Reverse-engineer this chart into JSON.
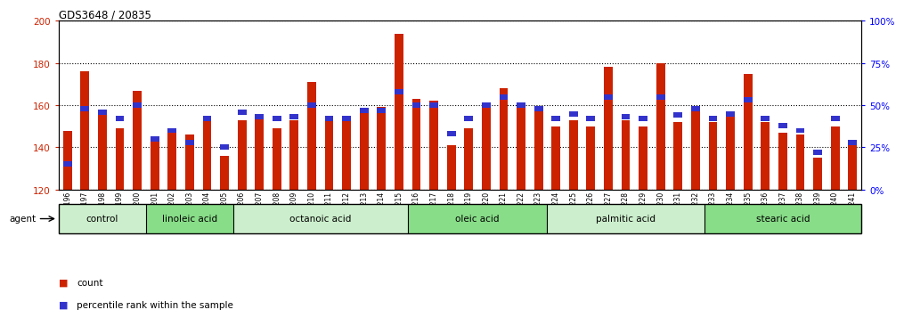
{
  "title": "GDS3648 / 20835",
  "samples": [
    "GSM525196",
    "GSM525197",
    "GSM525198",
    "GSM525199",
    "GSM525200",
    "GSM525201",
    "GSM525202",
    "GSM525203",
    "GSM525204",
    "GSM525205",
    "GSM525206",
    "GSM525207",
    "GSM525208",
    "GSM525209",
    "GSM525210",
    "GSM525211",
    "GSM525212",
    "GSM525213",
    "GSM525214",
    "GSM525215",
    "GSM525216",
    "GSM525217",
    "GSM525218",
    "GSM525219",
    "GSM525220",
    "GSM525221",
    "GSM525222",
    "GSM525223",
    "GSM525224",
    "GSM525225",
    "GSM525226",
    "GSM525227",
    "GSM525228",
    "GSM525229",
    "GSM525230",
    "GSM525231",
    "GSM525232",
    "GSM525233",
    "GSM525234",
    "GSM525235",
    "GSM525236",
    "GSM525237",
    "GSM525238",
    "GSM525239",
    "GSM525240",
    "GSM525241"
  ],
  "counts": [
    148,
    176,
    158,
    149,
    167,
    145,
    148,
    146,
    155,
    136,
    153,
    156,
    149,
    153,
    171,
    153,
    153,
    158,
    159,
    194,
    163,
    162,
    141,
    149,
    161,
    168,
    160,
    157,
    150,
    153,
    150,
    178,
    153,
    150,
    180,
    152,
    158,
    152,
    155,
    175,
    152,
    147,
    146,
    135,
    150,
    143
  ],
  "percentile_ranks": [
    15,
    48,
    46,
    42,
    50,
    30,
    35,
    28,
    42,
    25,
    46,
    43,
    42,
    43,
    50,
    42,
    42,
    47,
    47,
    58,
    50,
    50,
    33,
    42,
    50,
    55,
    50,
    48,
    42,
    45,
    42,
    55,
    43,
    42,
    55,
    44,
    48,
    42,
    45,
    53,
    42,
    38,
    35,
    22,
    42,
    28
  ],
  "groups": [
    {
      "label": "control",
      "start": 0,
      "end": 5
    },
    {
      "label": "linoleic acid",
      "start": 5,
      "end": 10
    },
    {
      "label": "octanoic acid",
      "start": 10,
      "end": 20
    },
    {
      "label": "oleic acid",
      "start": 20,
      "end": 28
    },
    {
      "label": "palmitic acid",
      "start": 28,
      "end": 37
    },
    {
      "label": "stearic acid",
      "start": 37,
      "end": 46
    }
  ],
  "bar_color": "#cc2200",
  "blue_color": "#3333cc",
  "bg_color": "#ffffff",
  "group_colors_cycle": [
    "#cceecc",
    "#88dd88"
  ],
  "ylim_left": [
    120,
    200
  ],
  "ylim_right": [
    0,
    100
  ],
  "yticks_left": [
    120,
    140,
    160,
    180,
    200
  ],
  "yticks_right": [
    0,
    25,
    50,
    75,
    100
  ],
  "ytick_labels_right": [
    "0%",
    "25%",
    "50%",
    "75%",
    "100%"
  ]
}
